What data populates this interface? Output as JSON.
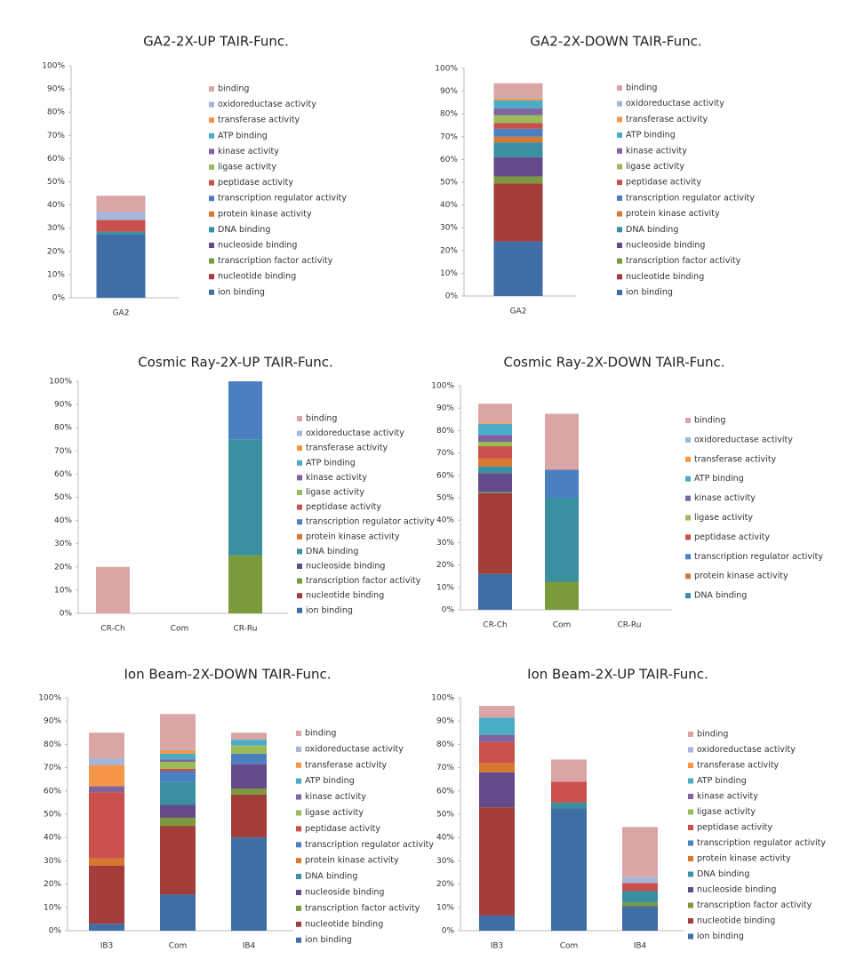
{
  "chart_data": [
    {
      "type": "bar",
      "stacked": true,
      "title": "GA2-2X-UP TAIR-Func.",
      "categories": [
        "GA2"
      ],
      "ylim": [
        0,
        100
      ],
      "yticks": [
        {
          "value": 0,
          "label": "0%"
        },
        {
          "value": 10,
          "label": "10%"
        },
        {
          "value": 20,
          "label": "20%"
        },
        {
          "value": 30,
          "label": "30%"
        },
        {
          "value": 40,
          "label": "40%"
        },
        {
          "value": 50,
          "label": "50%"
        },
        {
          "value": 60,
          "label": "60%"
        },
        {
          "value": 70,
          "label": "70%"
        },
        {
          "value": 80,
          "label": "80%"
        },
        {
          "value": 90,
          "label": "90%"
        },
        {
          "value": 100,
          "label": "100%"
        }
      ],
      "series": [
        {
          "name": "ion binding",
          "color": "#3f6da4",
          "values": [
            27.5
          ]
        },
        {
          "name": "nucleotide binding",
          "color": "#a33d3a",
          "values": [
            0
          ]
        },
        {
          "name": "transcription factor activity",
          "color": "#7a9a3c",
          "values": [
            0
          ]
        },
        {
          "name": "nucleoside binding",
          "color": "#644a8a",
          "values": [
            0
          ]
        },
        {
          "name": "DNA binding",
          "color": "#3a8fa0",
          "values": [
            1
          ]
        },
        {
          "name": "protein kinase activity",
          "color": "#d7782e",
          "values": [
            0
          ]
        },
        {
          "name": "transcription regulator activity",
          "color": "#4a7fc0",
          "values": [
            0
          ]
        },
        {
          "name": "peptidase activity",
          "color": "#c9504d",
          "values": [
            5
          ]
        },
        {
          "name": "ligase activity",
          "color": "#9bbb59",
          "values": [
            0
          ]
        },
        {
          "name": "kinase activity",
          "color": "#8064a2",
          "values": [
            0
          ]
        },
        {
          "name": "ATP binding",
          "color": "#4bacc6",
          "values": [
            0
          ]
        },
        {
          "name": "transferase activity",
          "color": "#f79646",
          "values": [
            0
          ]
        },
        {
          "name": "oxidoreductase activity",
          "color": "#a5b6d8",
          "values": [
            3.5
          ]
        },
        {
          "name": "binding",
          "color": "#d9a5a5",
          "values": [
            7
          ]
        }
      ]
    },
    {
      "type": "bar",
      "stacked": true,
      "title": "GA2-2X-DOWN TAIR-Func.",
      "categories": [
        "GA2"
      ],
      "ylim": [
        0,
        100
      ],
      "yticks": [
        {
          "value": 0,
          "label": "0%"
        },
        {
          "value": 10,
          "label": "10%"
        },
        {
          "value": 20,
          "label": "20%"
        },
        {
          "value": 30,
          "label": "30%"
        },
        {
          "value": 40,
          "label": "40%"
        },
        {
          "value": 50,
          "label": "50%"
        },
        {
          "value": 60,
          "label": "60%"
        },
        {
          "value": 70,
          "label": "70%"
        },
        {
          "value": 80,
          "label": "80%"
        },
        {
          "value": 90,
          "label": "90%"
        },
        {
          "value": 100,
          "label": "100%"
        }
      ],
      "series": [
        {
          "name": "ion binding",
          "color": "#3f6da4",
          "values": [
            24
          ]
        },
        {
          "name": "nucleotide binding",
          "color": "#a33d3a",
          "values": [
            25.5
          ]
        },
        {
          "name": "transcription factor activity",
          "color": "#7a9a3c",
          "values": [
            3
          ]
        },
        {
          "name": "nucleoside binding",
          "color": "#644a8a",
          "values": [
            8.5
          ]
        },
        {
          "name": "DNA binding",
          "color": "#3a8fa0",
          "values": [
            6.5
          ]
        },
        {
          "name": "protein kinase activity",
          "color": "#d7782e",
          "values": [
            2.5
          ]
        },
        {
          "name": "transcription regulator activity",
          "color": "#4a7fc0",
          "values": [
            3.5
          ]
        },
        {
          "name": "peptidase activity",
          "color": "#c9504d",
          "values": [
            2.5
          ]
        },
        {
          "name": "ligase activity",
          "color": "#9bbb59",
          "values": [
            3.5
          ]
        },
        {
          "name": "kinase activity",
          "color": "#8064a2",
          "values": [
            3
          ]
        },
        {
          "name": "ATP binding",
          "color": "#4bacc6",
          "values": [
            3.5
          ]
        },
        {
          "name": "transferase activity",
          "color": "#f79646",
          "values": [
            1
          ]
        },
        {
          "name": "oxidoreductase activity",
          "color": "#a5b6d8",
          "values": [
            0.5
          ]
        },
        {
          "name": "binding",
          "color": "#d9a5a5",
          "values": [
            6
          ]
        }
      ]
    },
    {
      "type": "bar",
      "stacked": true,
      "title": "Cosmic Ray-2X-UP TAIR-Func.",
      "categories": [
        "CR-Ch",
        "Com",
        "CR-Ru"
      ],
      "ylim": [
        0,
        100
      ],
      "yticks": [
        {
          "value": 0,
          "label": "0%"
        },
        {
          "value": 10,
          "label": "10%"
        },
        {
          "value": 20,
          "label": "20%"
        },
        {
          "value": 30,
          "label": "30%"
        },
        {
          "value": 40,
          "label": "40%"
        },
        {
          "value": 50,
          "label": "50%"
        },
        {
          "value": 60,
          "label": "60%"
        },
        {
          "value": 70,
          "label": "70%"
        },
        {
          "value": 80,
          "label": "80%"
        },
        {
          "value": 90,
          "label": "90%"
        },
        {
          "value": 100,
          "label": "100%"
        }
      ],
      "series": [
        {
          "name": "ion binding",
          "color": "#3f6da4",
          "values": [
            0,
            0,
            0
          ]
        },
        {
          "name": "nucleotide binding",
          "color": "#a33d3a",
          "values": [
            0,
            0,
            0
          ]
        },
        {
          "name": "transcription factor activity",
          "color": "#7a9a3c",
          "values": [
            0,
            0,
            25
          ]
        },
        {
          "name": "nucleoside binding",
          "color": "#644a8a",
          "values": [
            0,
            0,
            0
          ]
        },
        {
          "name": "DNA binding",
          "color": "#3a8fa0",
          "values": [
            0,
            0,
            50
          ]
        },
        {
          "name": "protein kinase activity",
          "color": "#d7782e",
          "values": [
            0,
            0,
            0
          ]
        },
        {
          "name": "transcription regulator activity",
          "color": "#4a7fc0",
          "values": [
            0,
            0,
            25
          ]
        },
        {
          "name": "peptidase activity",
          "color": "#c9504d",
          "values": [
            0,
            0,
            0
          ]
        },
        {
          "name": "ligase activity",
          "color": "#9bbb59",
          "values": [
            0,
            0,
            0
          ]
        },
        {
          "name": "kinase activity",
          "color": "#8064a2",
          "values": [
            0,
            0,
            0
          ]
        },
        {
          "name": "ATP binding",
          "color": "#4bacc6",
          "values": [
            0,
            0,
            0
          ]
        },
        {
          "name": "transferase activity",
          "color": "#f79646",
          "values": [
            0,
            0,
            0
          ]
        },
        {
          "name": "oxidoreductase activity",
          "color": "#a5b6d8",
          "values": [
            0,
            0,
            0
          ]
        },
        {
          "name": "binding",
          "color": "#d9a5a5",
          "values": [
            20,
            0,
            0
          ]
        }
      ]
    },
    {
      "type": "bar",
      "stacked": true,
      "title": "Cosmic Ray-2X-DOWN TAIR-Func.",
      "categories": [
        "CR-Ch",
        "Com",
        "CR-Ru"
      ],
      "ylim": [
        0,
        100
      ],
      "yticks": [
        {
          "value": 0,
          "label": "0%"
        },
        {
          "value": 10,
          "label": "10%"
        },
        {
          "value": 20,
          "label": "20%"
        },
        {
          "value": 30,
          "label": "30%"
        },
        {
          "value": 40,
          "label": "40%"
        },
        {
          "value": 50,
          "label": "50%"
        },
        {
          "value": 60,
          "label": "60%"
        },
        {
          "value": 70,
          "label": "70%"
        },
        {
          "value": 80,
          "label": "80%"
        },
        {
          "value": 90,
          "label": "90%"
        },
        {
          "value": 100,
          "label": "100%"
        }
      ],
      "series": [
        {
          "name": null,
          "color": "#3f6da4",
          "values": [
            16,
            0,
            0
          ]
        },
        {
          "name": null,
          "color": "#a33d3a",
          "values": [
            36,
            0,
            0
          ]
        },
        {
          "name": null,
          "color": "#7a9a3c",
          "values": [
            0.5,
            12.5,
            0
          ]
        },
        {
          "name": null,
          "color": "#644a8a",
          "values": [
            8.5,
            0,
            0
          ]
        },
        {
          "name": "DNA binding",
          "color": "#3a8fa0",
          "values": [
            3,
            37.5,
            0
          ]
        },
        {
          "name": "protein kinase activity",
          "color": "#d7782e",
          "values": [
            3.5,
            0,
            0
          ]
        },
        {
          "name": "transcription regulator activity",
          "color": "#4a7fc0",
          "values": [
            0,
            12.5,
            0
          ]
        },
        {
          "name": "peptidase activity",
          "color": "#c9504d",
          "values": [
            5.5,
            0,
            0
          ]
        },
        {
          "name": "ligase activity",
          "color": "#9bbb59",
          "values": [
            2,
            0,
            0
          ]
        },
        {
          "name": "kinase activity",
          "color": "#8064a2",
          "values": [
            3,
            0,
            0
          ]
        },
        {
          "name": "ATP binding",
          "color": "#4bacc6",
          "values": [
            5,
            0,
            0
          ]
        },
        {
          "name": "transferase activity",
          "color": "#f79646",
          "values": [
            0.5,
            0,
            0
          ]
        },
        {
          "name": "oxidoreductase activity",
          "color": "#a5b6d8",
          "values": [
            0,
            0,
            0
          ]
        },
        {
          "name": "binding",
          "color": "#d9a5a5",
          "values": [
            8.5,
            25,
            0
          ]
        }
      ]
    },
    {
      "type": "bar",
      "stacked": true,
      "title": "Ion Beam-2X-DOWN TAIR-Func.",
      "categories": [
        "IB3",
        "Com",
        "IB4"
      ],
      "ylim": [
        0,
        100
      ],
      "yticks": [
        {
          "value": 0,
          "label": "0%"
        },
        {
          "value": 10,
          "label": "10%"
        },
        {
          "value": 20,
          "label": "20%"
        },
        {
          "value": 30,
          "label": "30%"
        },
        {
          "value": 40,
          "label": "40%"
        },
        {
          "value": 50,
          "label": "50%"
        },
        {
          "value": 60,
          "label": "60%"
        },
        {
          "value": 70,
          "label": "70%"
        },
        {
          "value": 80,
          "label": "80%"
        },
        {
          "value": 90,
          "label": "90%"
        },
        {
          "value": 100,
          "label": "100%"
        }
      ],
      "series": [
        {
          "name": "ion binding",
          "color": "#3f6da4",
          "values": [
            3,
            15.5,
            40
          ]
        },
        {
          "name": "nucleotide binding",
          "color": "#a33d3a",
          "values": [
            25,
            29.5,
            18.5
          ]
        },
        {
          "name": "transcription factor activity",
          "color": "#7a9a3c",
          "values": [
            0,
            3.5,
            2.5
          ]
        },
        {
          "name": "nucleoside binding",
          "color": "#644a8a",
          "values": [
            0,
            5.5,
            10.5
          ]
        },
        {
          "name": "DNA binding",
          "color": "#3a8fa0",
          "values": [
            0,
            10,
            0
          ]
        },
        {
          "name": "protein kinase activity",
          "color": "#d7782e",
          "values": [
            3,
            0,
            0
          ]
        },
        {
          "name": "transcription regulator activity",
          "color": "#4a7fc0",
          "values": [
            0,
            4.5,
            4.5
          ]
        },
        {
          "name": "peptidase activity",
          "color": "#c9504d",
          "values": [
            28.5,
            1,
            0
          ]
        },
        {
          "name": "ligase activity",
          "color": "#9bbb59",
          "values": [
            0,
            3,
            3.5
          ]
        },
        {
          "name": "kinase activity",
          "color": "#8064a2",
          "values": [
            2.5,
            1,
            0
          ]
        },
        {
          "name": "ATP binding",
          "color": "#4bacc6",
          "values": [
            0,
            2.5,
            2.5
          ]
        },
        {
          "name": "transferase activity",
          "color": "#f79646",
          "values": [
            9,
            1.5,
            0
          ]
        },
        {
          "name": "oxidoreductase activity",
          "color": "#a5b6d8",
          "values": [
            3,
            0.5,
            0
          ]
        },
        {
          "name": "binding",
          "color": "#d9a5a5",
          "values": [
            11,
            15,
            3
          ]
        }
      ]
    },
    {
      "type": "bar",
      "stacked": true,
      "title": "Ion Beam-2X-UP TAIR-Func.",
      "categories": [
        "IB3",
        "Com",
        "IB4"
      ],
      "ylim": [
        0,
        100
      ],
      "yticks": [
        {
          "value": 0,
          "label": "0%"
        },
        {
          "value": 10,
          "label": "10%"
        },
        {
          "value": 20,
          "label": "20%"
        },
        {
          "value": 30,
          "label": "30%"
        },
        {
          "value": 40,
          "label": "40%"
        },
        {
          "value": 50,
          "label": "50%"
        },
        {
          "value": 60,
          "label": "60%"
        },
        {
          "value": 70,
          "label": "70%"
        },
        {
          "value": 80,
          "label": "80%"
        },
        {
          "value": 90,
          "label": "90%"
        },
        {
          "value": 100,
          "label": "100%"
        }
      ],
      "series": [
        {
          "name": "ion binding",
          "color": "#3f6da4",
          "values": [
            6.5,
            52.5,
            10.5
          ]
        },
        {
          "name": "nucleotide binding",
          "color": "#a33d3a",
          "values": [
            46.5,
            0,
            0
          ]
        },
        {
          "name": "transcription factor activity",
          "color": "#7a9a3c",
          "values": [
            0,
            0,
            1.5
          ]
        },
        {
          "name": "nucleoside binding",
          "color": "#644a8a",
          "values": [
            15,
            0,
            0
          ]
        },
        {
          "name": "DNA binding",
          "color": "#3a8fa0",
          "values": [
            0,
            2.5,
            5
          ]
        },
        {
          "name": "protein kinase activity",
          "color": "#d7782e",
          "values": [
            4,
            0,
            0
          ]
        },
        {
          "name": "transcription regulator activity",
          "color": "#4a7fc0",
          "values": [
            0,
            0,
            0
          ]
        },
        {
          "name": "peptidase activity",
          "color": "#c9504d",
          "values": [
            9,
            9,
            3.5
          ]
        },
        {
          "name": "ligase activity",
          "color": "#9bbb59",
          "values": [
            0,
            0,
            0
          ]
        },
        {
          "name": "kinase activity",
          "color": "#8064a2",
          "values": [
            3,
            0,
            0
          ]
        },
        {
          "name": "ATP binding",
          "color": "#4bacc6",
          "values": [
            7.5,
            0,
            0
          ]
        },
        {
          "name": "transferase activity",
          "color": "#f79646",
          "values": [
            0,
            0,
            0
          ]
        },
        {
          "name": "oxidoreductase activity",
          "color": "#a5b6d8",
          "values": [
            0,
            0,
            2.5
          ]
        },
        {
          "name": "binding",
          "color": "#d9a5a5",
          "values": [
            5,
            9.5,
            21.5
          ]
        }
      ]
    }
  ]
}
